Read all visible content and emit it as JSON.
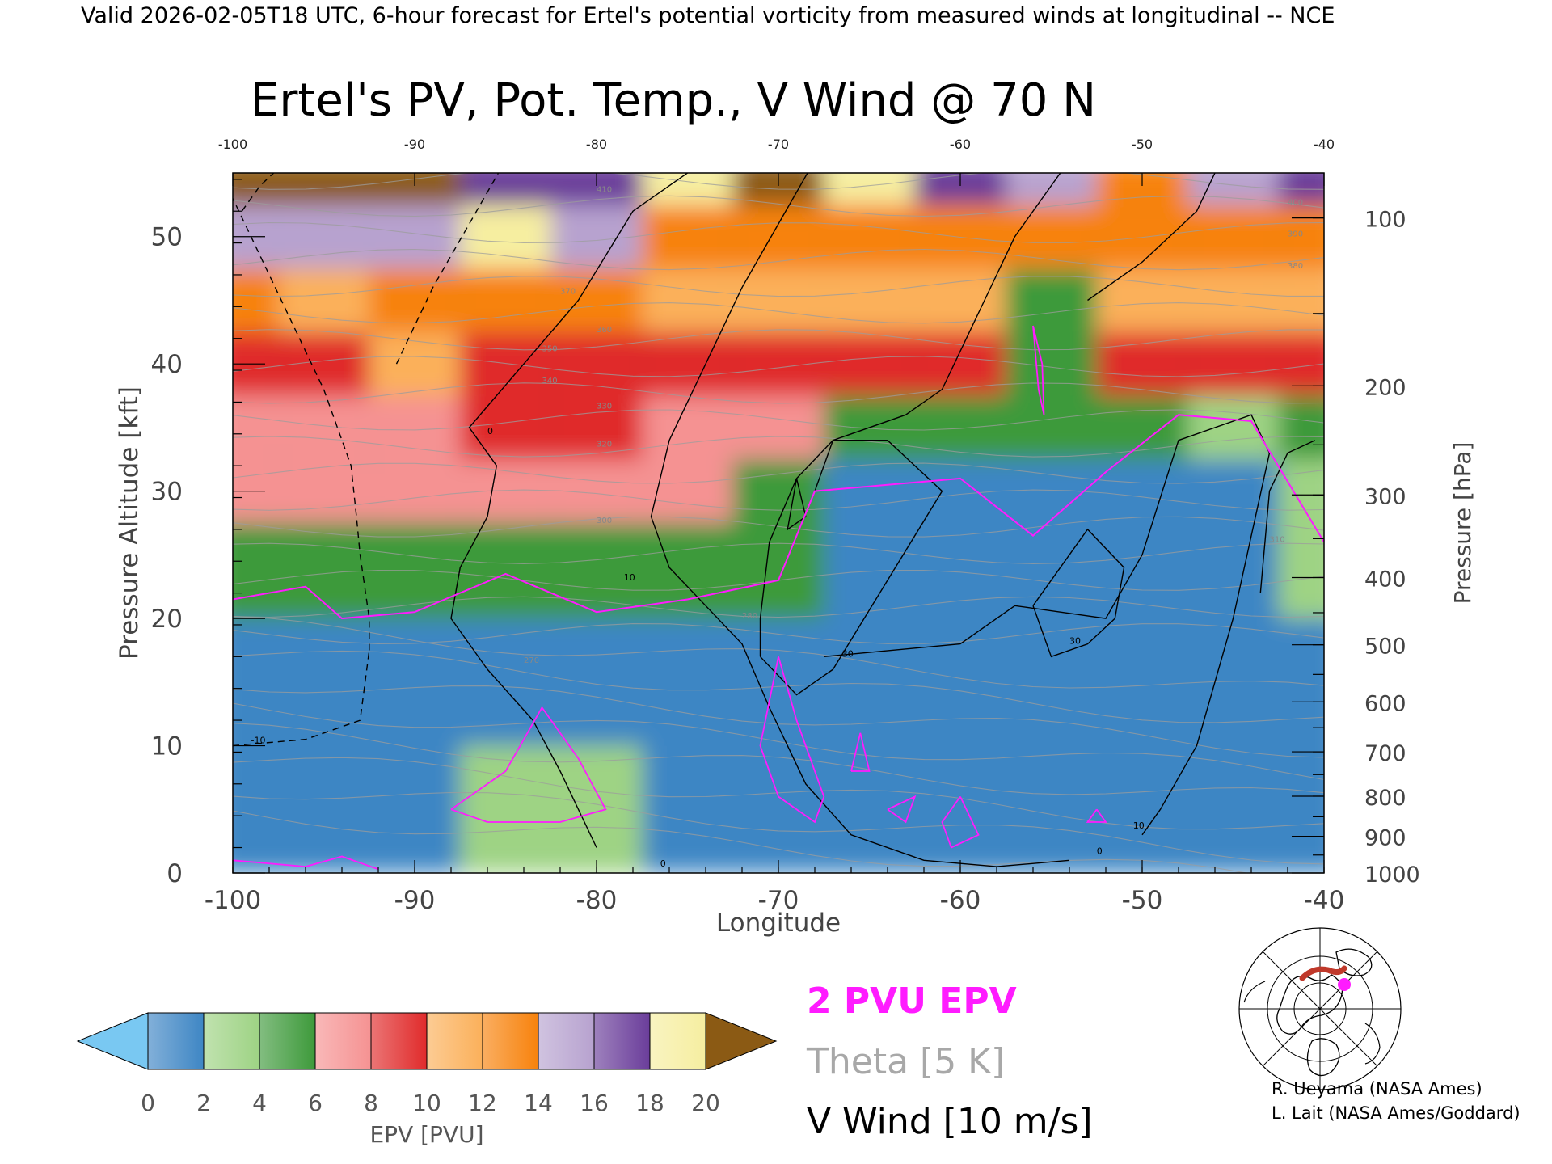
{
  "header": {
    "valid_line": "Valid 2026-02-05T18 UTC, 6-hour forecast for Ertel's potential vorticity from measured winds at longitudinal -- NCE",
    "title": "Ertel's PV, Pot. Temp., V Wind @ 70 N"
  },
  "axes": {
    "xlabel": "Longitude",
    "ylabel_left": "Pressure Altitude [kft]",
    "ylabel_right": "Pressure [hPa]",
    "x_ticks": [
      "-100",
      "-90",
      "-80",
      "-70",
      "-60",
      "-50",
      "-40"
    ],
    "x_ticks_top": [
      "-100",
      "-90",
      "-80",
      "-70",
      "-60",
      "-50",
      "-40"
    ],
    "y_ticks": [
      "0",
      "10",
      "20",
      "30",
      "40",
      "50"
    ],
    "p_ticks": [
      "1000",
      "900",
      "800",
      "700",
      "600",
      "500",
      "400",
      "300",
      "200",
      "100"
    ]
  },
  "colorbar": {
    "label": "EPV [PVU]",
    "tick_labels": [
      "0",
      "2",
      "4",
      "6",
      "8",
      "10",
      "12",
      "14",
      "16",
      "18",
      "20"
    ],
    "colors": [
      "#79c8f2",
      "#3e86c4",
      "#9ed384",
      "#3e9a3b",
      "#f59292",
      "#e02b2b",
      "#fbb05a",
      "#f7820c",
      "#b7a2cf",
      "#6a3d9a",
      "#f6eea0",
      "#8b5a14"
    ]
  },
  "legend": {
    "items": [
      {
        "text": "2 PVU EPV",
        "color": "#ff1bff"
      },
      {
        "text": "Theta [5 K]",
        "color": "#a8a8a8"
      },
      {
        "text": "V Wind [10 m/s]",
        "color": "#000000"
      }
    ]
  },
  "credits": {
    "line1": "R. Ueyama (NASA Ames)",
    "line2": "L. Lait (NASA Ames/Goddard)"
  },
  "inset_map": {
    "icon": "polar-map-icon",
    "marker_color": "#ff1bff",
    "track_color": "#c0392b"
  },
  "chart_data": {
    "type": "heatmap",
    "title": "Ertel's PV, Pot. Temp., V Wind @ 70 N",
    "xlabel": "Longitude",
    "ylabel": "Pressure Altitude [kft]",
    "xlim": [
      -100,
      -40
    ],
    "ylim": [
      0,
      55
    ],
    "units": "PVU",
    "columns_longitude": [
      -100,
      -95,
      -90,
      -85,
      -80,
      -75,
      -70,
      -65,
      -60,
      -55,
      -50,
      -45,
      -40
    ],
    "rows": [
      {
        "altitude_kft": 5,
        "epv": [
          1.2,
          1.3,
          1.4,
          2.6,
          2.8,
          1.2,
          1.4,
          1.0,
          1.3,
          1.1,
          1.0,
          1.0,
          1.2
        ]
      },
      {
        "altitude_kft": 15,
        "epv": [
          1.1,
          1.2,
          1.3,
          1.5,
          1.4,
          1.3,
          1.3,
          1.2,
          1.2,
          1.1,
          1.1,
          1.1,
          1.2
        ]
      },
      {
        "altitude_kft": 25,
        "epv": [
          5.5,
          5.0,
          4.5,
          4.0,
          4.5,
          4.0,
          4.0,
          1.5,
          1.2,
          1.3,
          1.2,
          1.3,
          2.0
        ]
      },
      {
        "altitude_kft": 30,
        "epv": [
          6.0,
          6.5,
          6.0,
          7.0,
          7.0,
          6.0,
          4.5,
          1.5,
          1.5,
          1.8,
          1.5,
          1.5,
          3.0
        ]
      },
      {
        "altitude_kft": 35,
        "epv": [
          7.0,
          7.5,
          7.5,
          8.0,
          8.0,
          7.5,
          6.0,
          5.0,
          4.5,
          5.0,
          4.0,
          3.0,
          5.0
        ]
      },
      {
        "altitude_kft": 40,
        "epv": [
          9.5,
          9.5,
          10.0,
          9.5,
          9.0,
          9.0,
          9.0,
          9.0,
          9.0,
          5.0,
          9.5,
          9.0,
          8.5
        ]
      },
      {
        "altitude_kft": 45,
        "epv": [
          12.0,
          11.5,
          12.0,
          12.5,
          12.0,
          11.0,
          11.5,
          11.5,
          11.5,
          5.5,
          11.5,
          11.5,
          11.0
        ]
      },
      {
        "altitude_kft": 50,
        "epv": [
          15.5,
          15.0,
          15.5,
          18.0,
          14.5,
          13.5,
          13.0,
          12.5,
          13.0,
          13.0,
          12.5,
          12.5,
          12.5
        ]
      },
      {
        "altitude_kft": 55,
        "epv": [
          20.0,
          20.0,
          20.0,
          17.0,
          16.5,
          18.0,
          20.0,
          19.0,
          16.0,
          15.0,
          13.5,
          14.0,
          16.0
        ]
      }
    ],
    "contours": {
      "pv_2pvu_tropopause_kft": [
        {
          "lon": -100,
          "alt": 21.5
        },
        {
          "lon": -96,
          "alt": 22.5
        },
        {
          "lon": -94,
          "alt": 20.0
        },
        {
          "lon": -90,
          "alt": 20.5
        },
        {
          "lon": -85,
          "alt": 23.5
        },
        {
          "lon": -80,
          "alt": 20.5
        },
        {
          "lon": -75,
          "alt": 21.5
        },
        {
          "lon": -70,
          "alt": 23.0
        },
        {
          "lon": -68,
          "alt": 30.0
        },
        {
          "lon": -60,
          "alt": 31.0
        },
        {
          "lon": -56,
          "alt": 26.5
        },
        {
          "lon": -52,
          "alt": 31.5
        },
        {
          "lon": -48,
          "alt": 36.0
        },
        {
          "lon": -44,
          "alt": 35.5
        },
        {
          "lon": -40,
          "alt": 26.0
        }
      ],
      "v_wind_labels": [
        "0",
        "10",
        "30",
        "-10"
      ],
      "theta_labels": [
        "270",
        "280",
        "300",
        "310",
        "320",
        "330",
        "340",
        "350",
        "360",
        "370",
        "380",
        "390",
        "400",
        "410"
      ]
    }
  }
}
